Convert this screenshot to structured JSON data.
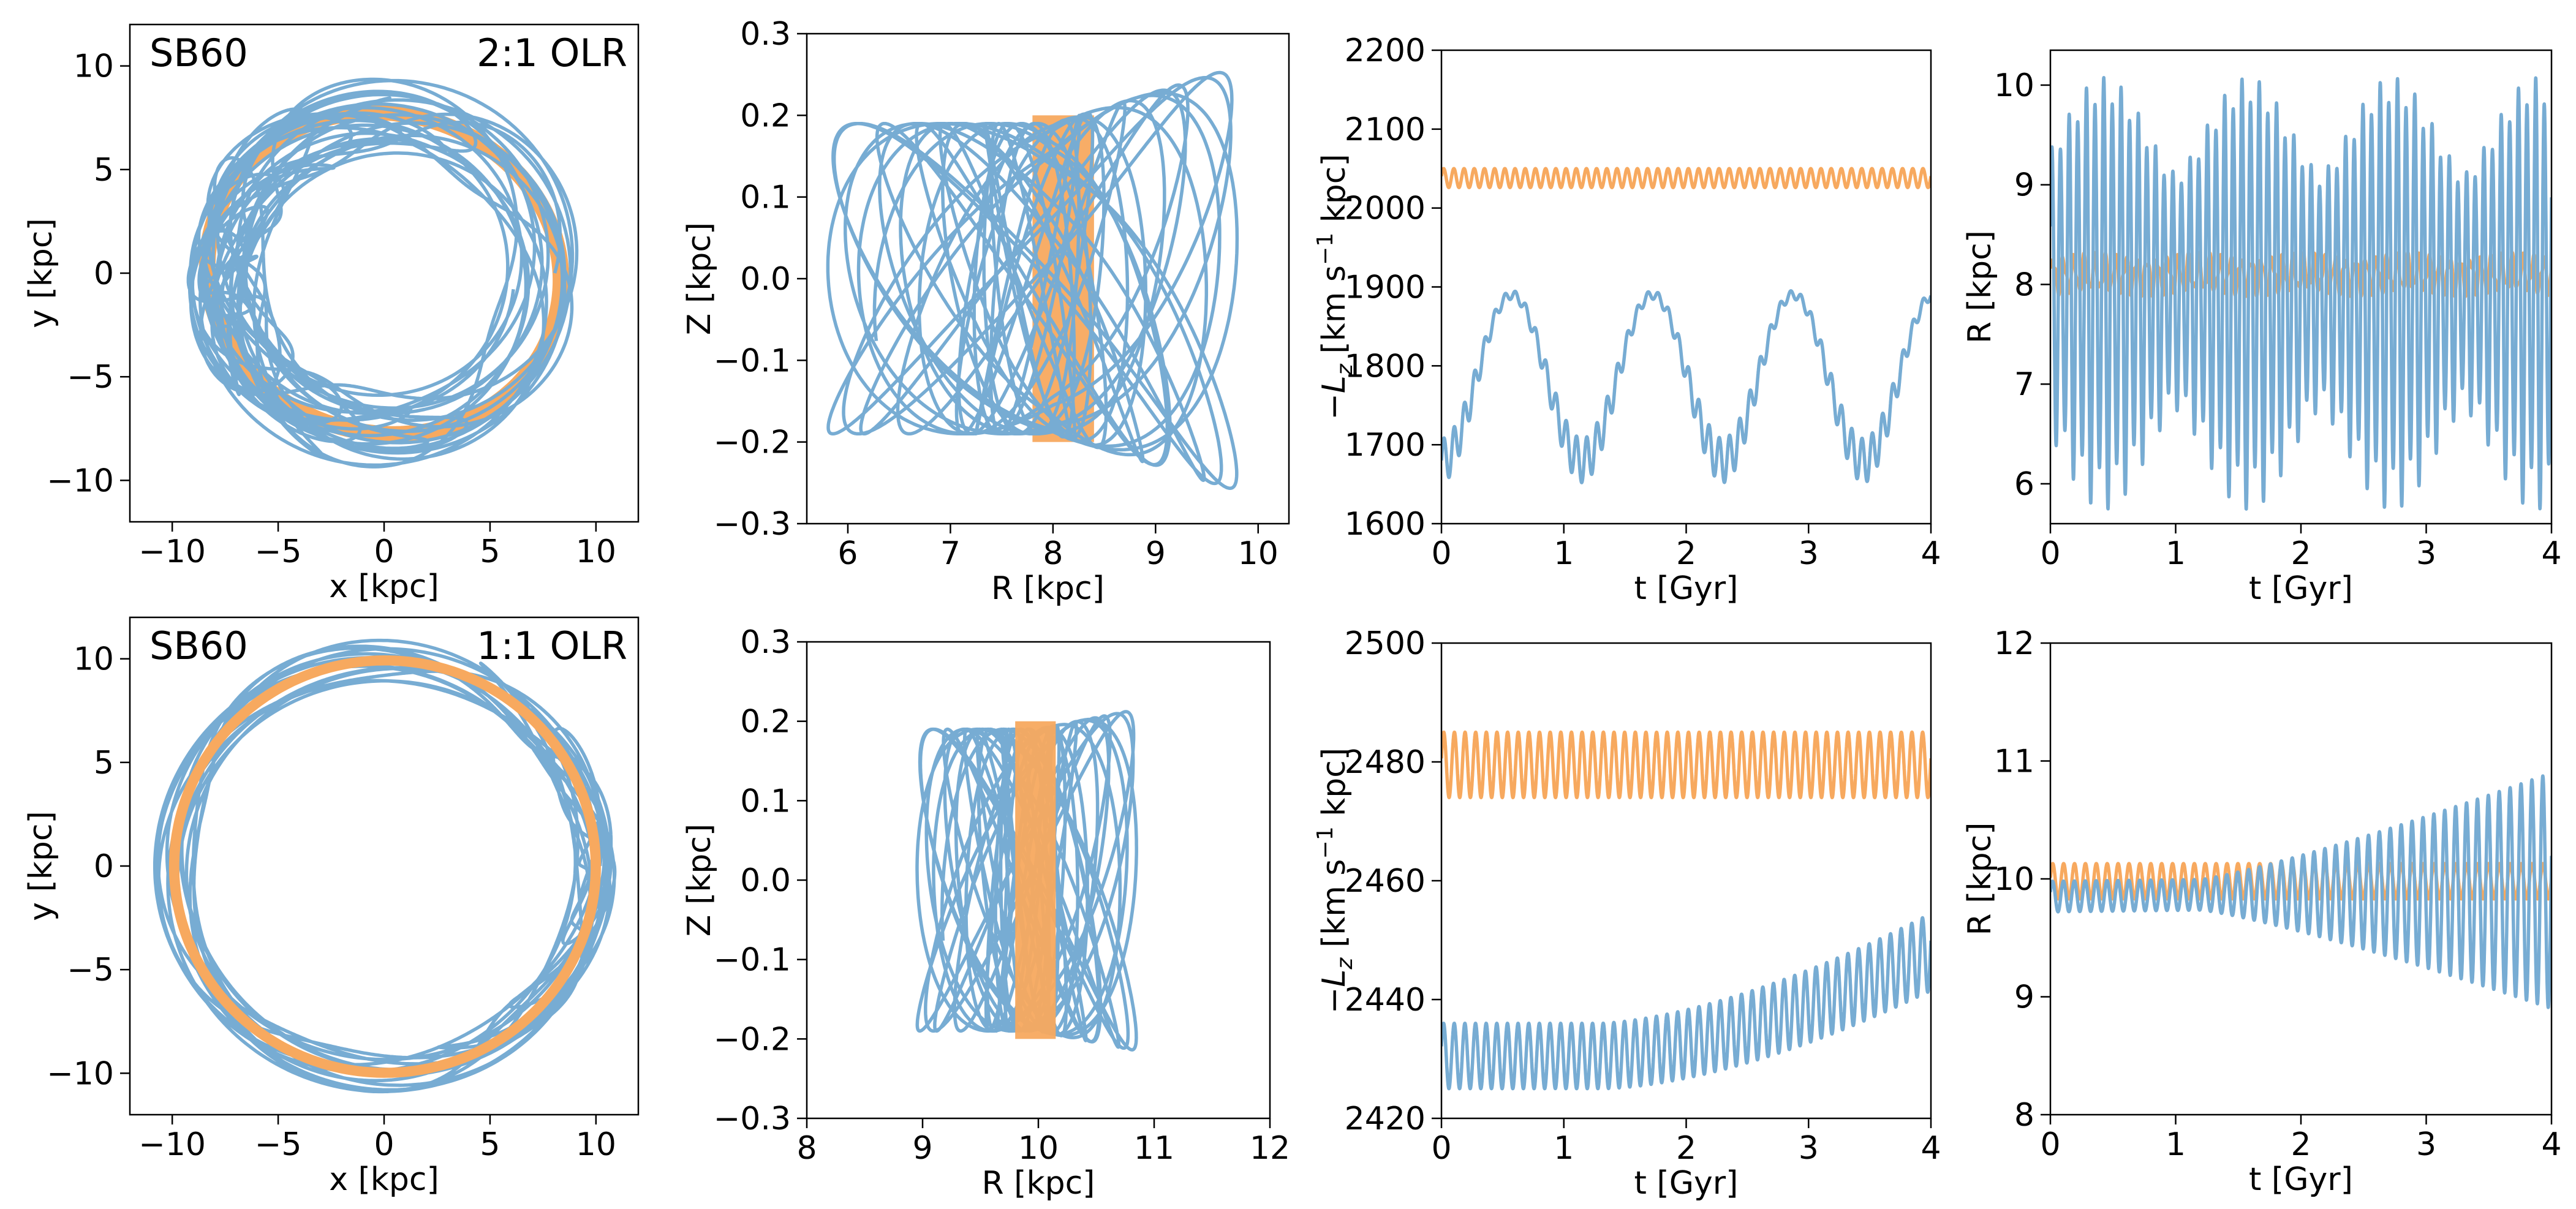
{
  "colors": {
    "blue": "#77acd3",
    "orange": "#f7a95f",
    "axis": "#000000"
  },
  "chart_data": [
    {
      "id": "top-xy",
      "type": "line",
      "title_left": "SB60",
      "title_right": "2:1 OLR",
      "xlabel": "x [kpc]",
      "ylabel": "y [kpc]",
      "xlim": [
        -12,
        12
      ],
      "ylim": [
        -12,
        12
      ],
      "xticks": [
        -10,
        -5,
        0,
        5,
        10
      ],
      "yticks": [
        -10,
        -5,
        0,
        5,
        10
      ],
      "xticklabels": [
        "−10",
        "−5",
        "0",
        "5",
        "10"
      ],
      "yticklabels": [
        "−10",
        "−5",
        "0",
        "5",
        "10"
      ],
      "series": [
        {
          "name": "orange",
          "kind": "ring",
          "r_min": 7.7,
          "r_max": 8.4,
          "m": 2,
          "amp": 0.35,
          "color": "orange"
        },
        {
          "name": "blue",
          "kind": "rosette",
          "r_center": 7.5,
          "r_amp": 1.9,
          "m": 2,
          "pattern_speed": 0.032,
          "loops": 18,
          "color": "blue"
        }
      ]
    },
    {
      "id": "top-rz",
      "type": "line",
      "xlabel": "R [kpc]",
      "ylabel": "Z [kpc]",
      "xlim": [
        5.6,
        10.3
      ],
      "ylim": [
        -0.3,
        0.3
      ],
      "xticks": [
        6,
        7,
        8,
        9,
        10
      ],
      "yticks": [
        -0.3,
        -0.2,
        -0.1,
        0.0,
        0.1,
        0.2,
        0.3
      ],
      "xticklabels": [
        "6",
        "7",
        "8",
        "9",
        "10"
      ],
      "yticklabels": [
        "−0.3",
        "−0.2",
        "−0.1",
        "0.0",
        "0.1",
        "0.2",
        "0.3"
      ],
      "series": [
        {
          "name": "orange",
          "kind": "band",
          "r_min": 7.8,
          "r_max": 8.4,
          "z_amp": 0.2,
          "color": "orange"
        },
        {
          "name": "blue",
          "kind": "meridional",
          "r_min": 5.8,
          "r_max": 9.8,
          "z_amp": 0.19,
          "z_amp_max": 0.26,
          "color": "blue"
        }
      ]
    },
    {
      "id": "top-lz",
      "type": "line",
      "xlabel": "t [Gyr]",
      "ylabel": "−L_z [km s⁻¹ kpc]",
      "ylabel_main": "−L",
      "ylabel_sub": "z",
      "ylabel_rest": " [km s",
      "ylabel_sup": "−1",
      "ylabel_end": " kpc]",
      "xlim": [
        0,
        4
      ],
      "ylim": [
        1600,
        2200
      ],
      "xticks": [
        0,
        1,
        2,
        3,
        4
      ],
      "yticks": [
        1600,
        1700,
        1800,
        1900,
        2000,
        2100,
        2200
      ],
      "xticklabels": [
        "0",
        "1",
        "2",
        "3",
        "4"
      ],
      "yticklabels": [
        "1600",
        "1700",
        "1800",
        "1900",
        "2000",
        "2100",
        "2200"
      ],
      "series": [
        {
          "name": "orange",
          "kind": "osc",
          "mean": 2038,
          "amp": 12,
          "freq": 12,
          "color": "orange"
        },
        {
          "name": "blue",
          "kind": "lz-slow",
          "mean": 1785,
          "slow_amp": 105,
          "slow_period": 1.15,
          "fast_amp": 28,
          "freq": 12,
          "color": "blue"
        }
      ]
    },
    {
      "id": "top-rt",
      "type": "line",
      "xlabel": "t [Gyr]",
      "ylabel": "R [kpc]",
      "xlim": [
        0,
        4
      ],
      "ylim": [
        5.6,
        10.35
      ],
      "xticks": [
        0,
        1,
        2,
        3,
        4
      ],
      "yticks": [
        6,
        7,
        8,
        9,
        10
      ],
      "xticklabels": [
        "0",
        "1",
        "2",
        "3",
        "4"
      ],
      "yticklabels": [
        "6",
        "7",
        "8",
        "9",
        "10"
      ],
      "series": [
        {
          "name": "orange",
          "kind": "osc2",
          "mean": 8.1,
          "amp": 0.22,
          "freq": 12,
          "color": "orange"
        },
        {
          "name": "blue",
          "kind": "r-beat",
          "mean": 7.95,
          "amp": 2.0,
          "freq": 14.5,
          "beat_period": 1.15,
          "color": "blue"
        }
      ]
    },
    {
      "id": "bot-xy",
      "type": "line",
      "title_left": "SB60",
      "title_right": "1:1 OLR",
      "xlabel": "x [kpc]",
      "ylabel": "y [kpc]",
      "xlim": [
        -12,
        12
      ],
      "ylim": [
        -12,
        12
      ],
      "xticks": [
        -10,
        -5,
        0,
        5,
        10
      ],
      "yticks": [
        -10,
        -5,
        0,
        5,
        10
      ],
      "xticklabels": [
        "−10",
        "−5",
        "0",
        "5",
        "10"
      ],
      "yticklabels": [
        "−10",
        "−5",
        "0",
        "5",
        "10"
      ],
      "series": [
        {
          "name": "blue",
          "kind": "rosette",
          "r_center": 9.9,
          "r_amp": 1.0,
          "m": 1,
          "pattern_speed": 0.045,
          "loops": 14,
          "color": "blue"
        },
        {
          "name": "orange",
          "kind": "ring",
          "r_min": 9.75,
          "r_max": 10.15,
          "m": 1,
          "amp": 0.05,
          "color": "orange"
        }
      ]
    },
    {
      "id": "bot-rz",
      "type": "line",
      "xlabel": "R [kpc]",
      "ylabel": "Z [kpc]",
      "xlim": [
        8,
        12
      ],
      "ylim": [
        -0.3,
        0.3
      ],
      "xticks": [
        8,
        9,
        10,
        11,
        12
      ],
      "yticks": [
        -0.3,
        -0.2,
        -0.1,
        0.0,
        0.1,
        0.2,
        0.3
      ],
      "xticklabels": [
        "8",
        "9",
        "10",
        "11",
        "12"
      ],
      "yticklabels": [
        "−0.3",
        "−0.2",
        "−0.1",
        "0.0",
        "0.1",
        "0.2",
        "0.3"
      ],
      "series": [
        {
          "name": "blue",
          "kind": "meridional",
          "r_min": 8.95,
          "r_max": 10.85,
          "z_amp": 0.19,
          "z_amp_max": 0.215,
          "color": "blue"
        },
        {
          "name": "orange",
          "kind": "band",
          "r_min": 9.8,
          "r_max": 10.15,
          "z_amp": 0.2,
          "color": "orange"
        }
      ]
    },
    {
      "id": "bot-lz",
      "type": "line",
      "xlabel": "t [Gyr]",
      "ylabel": "−L_z [km s⁻¹ kpc]",
      "ylabel_main": "−L",
      "ylabel_sub": "z",
      "ylabel_rest": " [km s",
      "ylabel_sup": "−1",
      "ylabel_end": " kpc]",
      "xlim": [
        0,
        4
      ],
      "ylim": [
        2420,
        2500
      ],
      "xticks": [
        0,
        1,
        2,
        3,
        4
      ],
      "yticks": [
        2420,
        2440,
        2460,
        2480,
        2500
      ],
      "xticklabels": [
        "0",
        "1",
        "2",
        "3",
        "4"
      ],
      "yticklabels": [
        "2420",
        "2440",
        "2460",
        "2480",
        "2500"
      ],
      "series": [
        {
          "name": "orange",
          "kind": "osc",
          "mean": 2479.5,
          "amp": 5.5,
          "freq": 11.5,
          "color": "orange"
        },
        {
          "name": "blue",
          "kind": "lz-rise",
          "start": 2430.5,
          "end": 2448,
          "amp_start": 5.5,
          "amp_end": 6.5,
          "freq": 11.5,
          "color": "blue"
        }
      ]
    },
    {
      "id": "bot-rt",
      "type": "line",
      "xlabel": "t [Gyr]",
      "ylabel": "R [kpc]",
      "xlim": [
        0,
        4
      ],
      "ylim": [
        8,
        12
      ],
      "xticks": [
        0,
        1,
        2,
        3,
        4
      ],
      "yticks": [
        8,
        9,
        10,
        11,
        12
      ],
      "xticklabels": [
        "0",
        "1",
        "2",
        "3",
        "4"
      ],
      "yticklabels": [
        "8",
        "9",
        "10",
        "11",
        "12"
      ],
      "series": [
        {
          "name": "orange",
          "kind": "osc",
          "mean": 9.98,
          "amp": 0.15,
          "freq": 11.5,
          "color": "orange"
        },
        {
          "name": "blue",
          "kind": "r-grow",
          "mean_start": 9.85,
          "mean_end": 9.9,
          "amp_start": 0.13,
          "amp_end": 1.0,
          "freq": 11.5,
          "color": "blue"
        }
      ]
    }
  ]
}
